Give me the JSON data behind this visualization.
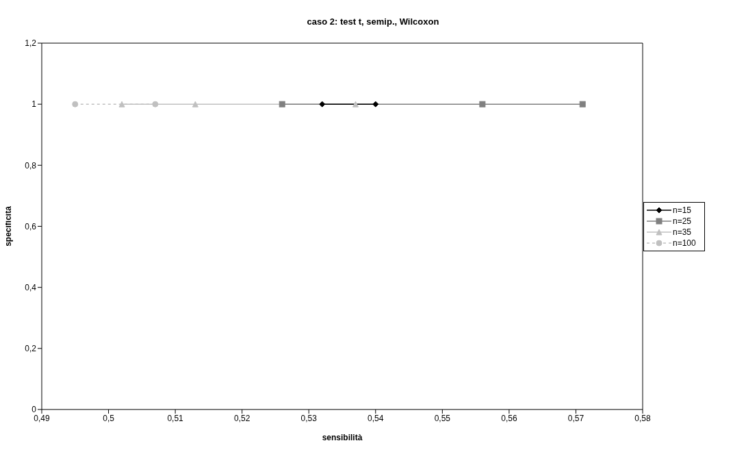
{
  "chart_data": {
    "type": "line",
    "title": "caso 2: test t, semip., Wilcoxon",
    "xlabel": "sensibilità",
    "ylabel": "specificità",
    "series": [
      {
        "name": "n=15",
        "color": "#000000",
        "marker": "diamond",
        "line_style": "solid",
        "x": [
          0.532,
          0.54
        ],
        "values": [
          1,
          1
        ]
      },
      {
        "name": "n=25",
        "color": "#808080",
        "marker": "square",
        "line_style": "solid",
        "x": [
          0.526,
          0.556,
          0.571
        ],
        "values": [
          1,
          1,
          1
        ]
      },
      {
        "name": "n=35",
        "color": "#c0c0c0",
        "marker": "triangle",
        "line_style": "solid",
        "x": [
          0.502,
          0.513,
          0.537
        ],
        "values": [
          1,
          1,
          1
        ]
      },
      {
        "name": "n=100",
        "color": "#c0c0c0",
        "marker": "circle",
        "line_style": "dashed",
        "x": [
          0.495,
          0.507
        ],
        "values": [
          1,
          1
        ]
      }
    ],
    "xlim": [
      0.49,
      0.58
    ],
    "xticks": [
      {
        "value": 0.49,
        "label": "0,49"
      },
      {
        "value": 0.5,
        "label": "0,5"
      },
      {
        "value": 0.51,
        "label": "0,51"
      },
      {
        "value": 0.52,
        "label": "0,52"
      },
      {
        "value": 0.53,
        "label": "0,53"
      },
      {
        "value": 0.54,
        "label": "0,54"
      },
      {
        "value": 0.55,
        "label": "0,55"
      },
      {
        "value": 0.56,
        "label": "0,56"
      },
      {
        "value": 0.57,
        "label": "0,57"
      },
      {
        "value": 0.58,
        "label": "0,58"
      }
    ],
    "ylim": [
      0,
      1.2
    ],
    "yticks": [
      0,
      {
        "value": 0.2,
        "label": "0,2"
      },
      {
        "value": 0.4,
        "label": "0,4"
      },
      {
        "value": 0.6,
        "label": "0,6"
      },
      {
        "value": 0.8,
        "label": "0,8"
      },
      1,
      {
        "value": 1.2,
        "label": "1,2"
      }
    ],
    "grid": false,
    "legend": "right"
  }
}
